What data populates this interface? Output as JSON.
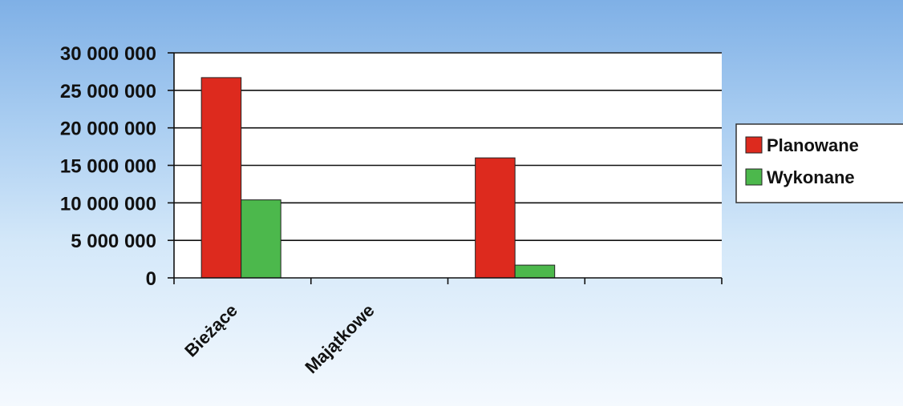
{
  "chart_data": {
    "type": "bar",
    "title": "",
    "xlabel": "",
    "ylabel": "",
    "categories": [
      "Bieżące",
      "Majątkowe",
      "",
      ""
    ],
    "series": [
      {
        "name": "Planowane",
        "color": "#dd2a1e",
        "values": [
          26700000,
          null,
          16000000,
          null
        ]
      },
      {
        "name": "Wykonane",
        "color": "#4cb84c",
        "values": [
          10400000,
          null,
          1700000,
          null
        ]
      }
    ],
    "ylim": [
      0,
      30000000
    ],
    "yticks": [
      0,
      5000000,
      10000000,
      15000000,
      20000000,
      25000000,
      30000000
    ],
    "ytick_labels": [
      "0",
      "5 000 000",
      "10 000 000",
      "15 000 000",
      "20 000 000",
      "25 000 000",
      "30 000 000"
    ],
    "category_labels_shown": [
      "Bieżące",
      "Majątkowe"
    ],
    "grid": true,
    "legend_position": "right"
  }
}
